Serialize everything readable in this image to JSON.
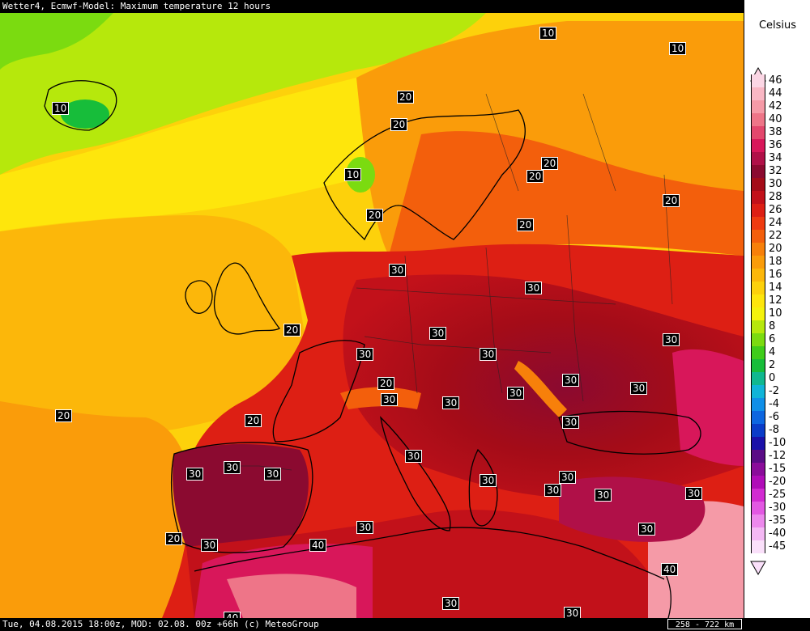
{
  "header": {
    "title": "Wetter4, Ecmwf-Model: Maximum temperature 12 hours"
  },
  "footer": {
    "info": "Tue, 04.08.2015 18:00z, MOD: 02.08. 00z +66h (c) MeteoGroup",
    "scale": "258 - 722 km"
  },
  "legend": {
    "unit": "Celsius",
    "entries": [
      {
        "value": "46",
        "color": "#fbd6e4"
      },
      {
        "value": "44",
        "color": "#f9b7c4"
      },
      {
        "value": "42",
        "color": "#f59aa7"
      },
      {
        "value": "40",
        "color": "#ee7588"
      },
      {
        "value": "38",
        "color": "#e3476d"
      },
      {
        "value": "36",
        "color": "#d8175a"
      },
      {
        "value": "34",
        "color": "#b01048"
      },
      {
        "value": "32",
        "color": "#8b0a30"
      },
      {
        "value": "30",
        "color": "#a40c18"
      },
      {
        "value": "28",
        "color": "#c2111a"
      },
      {
        "value": "26",
        "color": "#dd1f14"
      },
      {
        "value": "24",
        "color": "#ee3b10"
      },
      {
        "value": "22",
        "color": "#f35f0c"
      },
      {
        "value": "20",
        "color": "#f7800a"
      },
      {
        "value": "18",
        "color": "#fa9c0a"
      },
      {
        "value": "16",
        "color": "#fcb70a"
      },
      {
        "value": "14",
        "color": "#fdd10b"
      },
      {
        "value": "12",
        "color": "#fee60c"
      },
      {
        "value": "10",
        "color": "#f5f20c"
      },
      {
        "value": "8",
        "color": "#b6e80c"
      },
      {
        "value": "6",
        "color": "#7bdb10"
      },
      {
        "value": "4",
        "color": "#3fcd1a"
      },
      {
        "value": "2",
        "color": "#17bd3a"
      },
      {
        "value": "0",
        "color": "#10b88f"
      },
      {
        "value": "-2",
        "color": "#10b4d8"
      },
      {
        "value": "-4",
        "color": "#0f8fe8"
      },
      {
        "value": "-6",
        "color": "#0d66e0"
      },
      {
        "value": "-8",
        "color": "#0a3cc8"
      },
      {
        "value": "-10",
        "color": "#1a10a8"
      },
      {
        "value": "-12",
        "color": "#5a0c86"
      },
      {
        "value": "-15",
        "color": "#8a0c9a"
      },
      {
        "value": "-20",
        "color": "#b00cb8"
      },
      {
        "value": "-25",
        "color": "#d22ad2"
      },
      {
        "value": "-30",
        "color": "#e258e2"
      },
      {
        "value": "-35",
        "color": "#ec88ec"
      },
      {
        "value": "-40",
        "color": "#f4b8f4"
      },
      {
        "value": "-45",
        "color": "#fae0fa"
      }
    ]
  },
  "contour_labels": [
    "10",
    "10",
    "10",
    "10",
    "20",
    "20",
    "20",
    "20",
    "20",
    "20",
    "20",
    "30",
    "30",
    "30",
    "30",
    "30",
    "20",
    "30",
    "30",
    "30",
    "30",
    "20",
    "30",
    "20",
    "30",
    "30",
    "30",
    "30",
    "30",
    "30",
    "30",
    "30",
    "30",
    "30",
    "30",
    "20",
    "30",
    "30",
    "30",
    "40",
    "40",
    "40",
    "30",
    "30"
  ]
}
